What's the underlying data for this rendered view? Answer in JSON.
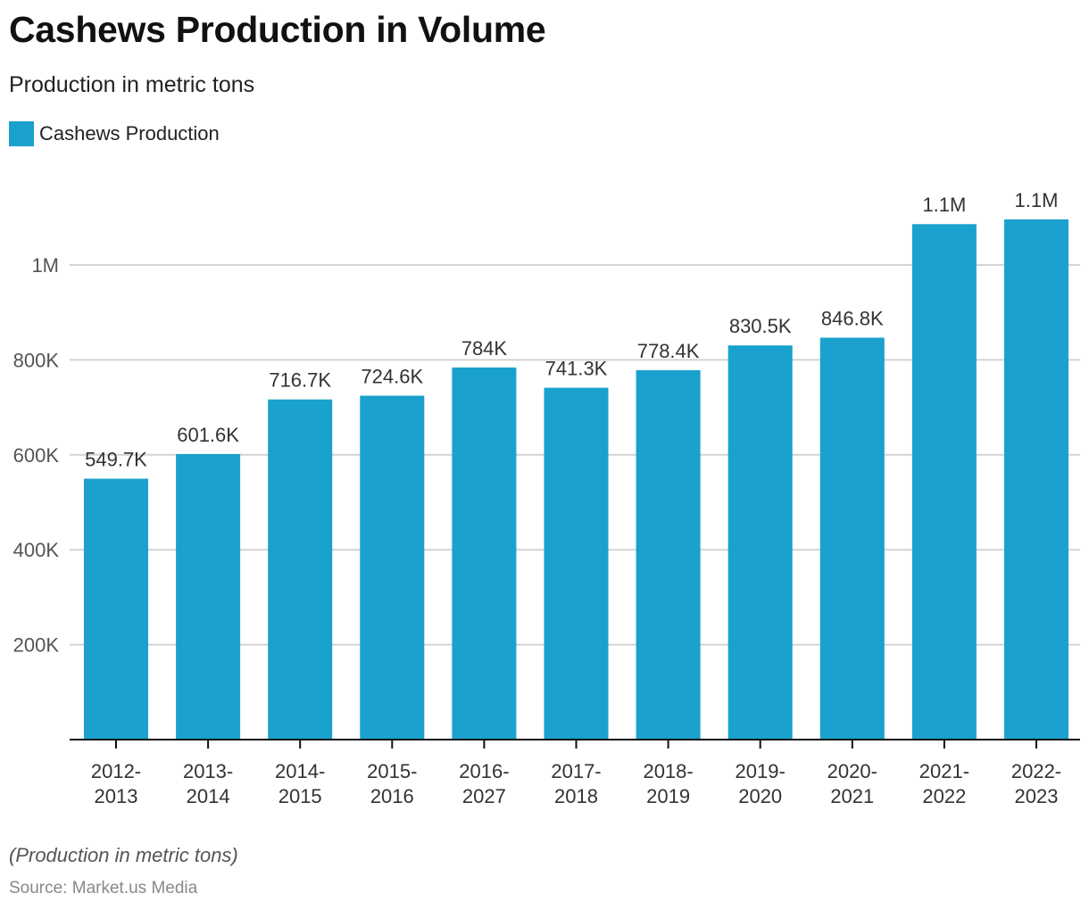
{
  "header": {
    "title": "Cashews Production in Volume",
    "subtitle": "Production in metric tons"
  },
  "legend": {
    "label": "Cashews Production",
    "color": "#1aa1cd"
  },
  "footer": {
    "note": "(Production in metric tons)",
    "source": "Source: Market.us Media"
  },
  "chart_data": {
    "type": "bar",
    "title": "Cashews Production in Volume",
    "subtitle": "Production in metric tons",
    "xlabel": "",
    "ylabel": "",
    "ylim": [
      0,
      1100000
    ],
    "grid": true,
    "legend_position": "top-left",
    "y_ticks": [
      {
        "value": 200000,
        "label": "200K"
      },
      {
        "value": 400000,
        "label": "400K"
      },
      {
        "value": 600000,
        "label": "600K"
      },
      {
        "value": 800000,
        "label": "800K"
      },
      {
        "value": 1000000,
        "label": "1M"
      }
    ],
    "categories": [
      [
        "2012-",
        "2013"
      ],
      [
        "2013-",
        "2014"
      ],
      [
        "2014-",
        "2015"
      ],
      [
        "2015-",
        "2016"
      ],
      [
        "2016-",
        "2027"
      ],
      [
        "2017-",
        "2018"
      ],
      [
        "2018-",
        "2019"
      ],
      [
        "2019-",
        "2020"
      ],
      [
        "2020-",
        "2021"
      ],
      [
        "2021-",
        "2022"
      ],
      [
        "2022-",
        "2023"
      ]
    ],
    "series": [
      {
        "name": "Cashews Production",
        "color": "#1aa1cd",
        "values": [
          549700,
          601600,
          716700,
          724600,
          784000,
          741300,
          778400,
          830500,
          846800,
          1086000,
          1096000
        ],
        "labels": [
          "549.7K",
          "601.6K",
          "716.7K",
          "724.6K",
          "784K",
          "741.3K",
          "778.4K",
          "830.5K",
          "846.8K",
          "1.1M",
          "1.1M"
        ]
      }
    ]
  }
}
